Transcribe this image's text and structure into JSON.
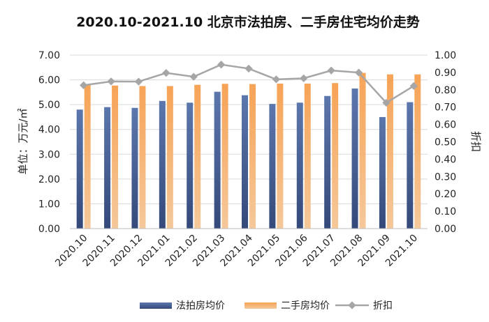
{
  "chart_data": {
    "type": "bar",
    "title": "2020.10-2021.10 北京市法拍房、二手房住宅均价走势",
    "ylabel": "单位：万元/㎡",
    "y2label": "折扣",
    "ylim": [
      0,
      7
    ],
    "y2lim": [
      0,
      1
    ],
    "yticks": [
      "0.00",
      "1.00",
      "2.00",
      "3.00",
      "4.00",
      "5.00",
      "6.00",
      "7.00"
    ],
    "y2ticks": [
      "0.00",
      "0.10",
      "0.20",
      "0.30",
      "0.40",
      "0.50",
      "0.60",
      "0.70",
      "0.80",
      "0.90",
      "1.00"
    ],
    "categories": [
      "2020.10",
      "2020.11",
      "2020.12",
      "2021.01",
      "2021.02",
      "2021.03",
      "2021.04",
      "2021.05",
      "2021.06",
      "2021.07",
      "2021.08",
      "2021.09",
      "2021.10"
    ],
    "series": [
      {
        "name": "法拍房均价",
        "type": "bar",
        "axis": "left",
        "color": "#4a6496",
        "values": [
          4.8,
          4.9,
          4.87,
          5.15,
          5.08,
          5.52,
          5.38,
          5.03,
          5.08,
          5.35,
          5.65,
          4.5,
          5.1
        ]
      },
      {
        "name": "二手房均价",
        "type": "bar",
        "axis": "left",
        "color": "#f39c4a",
        "values": [
          5.82,
          5.77,
          5.75,
          5.75,
          5.8,
          5.84,
          5.83,
          5.85,
          5.85,
          5.87,
          6.28,
          6.22,
          6.22
        ]
      },
      {
        "name": "折扣",
        "type": "line",
        "axis": "right",
        "color": "#a6a6a6",
        "values": [
          0.826,
          0.848,
          0.847,
          0.897,
          0.875,
          0.945,
          0.922,
          0.86,
          0.866,
          0.911,
          0.899,
          0.725,
          0.822
        ]
      }
    ],
    "grid": true,
    "legend": "bottom"
  }
}
